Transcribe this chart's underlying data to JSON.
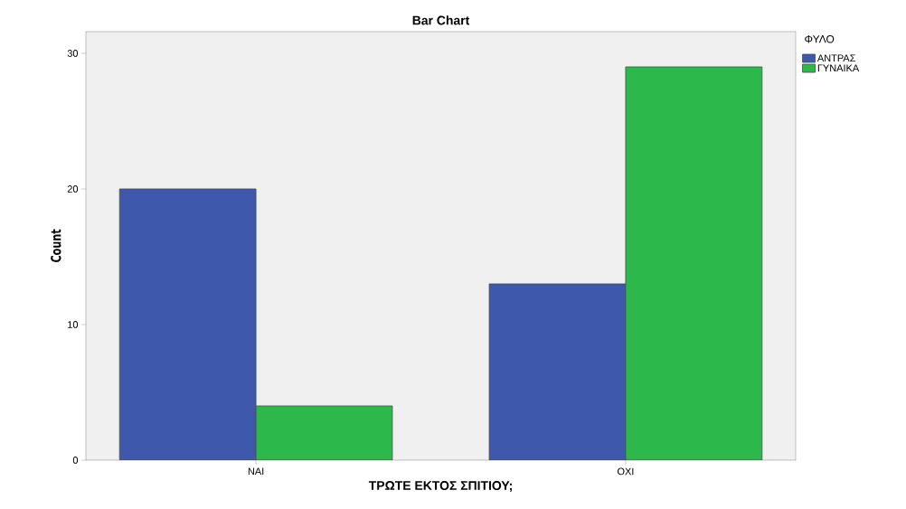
{
  "chart_data": {
    "type": "bar",
    "title": "Bar Chart",
    "xlabel": "ΤΡΩΤΕ ΕΚΤΟΣ ΣΠΙΤΙΟΥ;",
    "ylabel": "Count",
    "legend_title": "ΦΥΛΟ",
    "categories": [
      "ΝΑΙ",
      "ΟΧΙ"
    ],
    "series": [
      {
        "name": "ΑΝΤΡΑΣ",
        "color": "#3e58ac",
        "values": [
          20,
          13
        ]
      },
      {
        "name": "ΓΥΝΑΙΚΑ",
        "color": "#2db84b",
        "values": [
          4,
          29
        ]
      }
    ],
    "ylim": [
      0,
      31.6
    ],
    "yticks": [
      0,
      10,
      20,
      30
    ],
    "legend": "right"
  }
}
